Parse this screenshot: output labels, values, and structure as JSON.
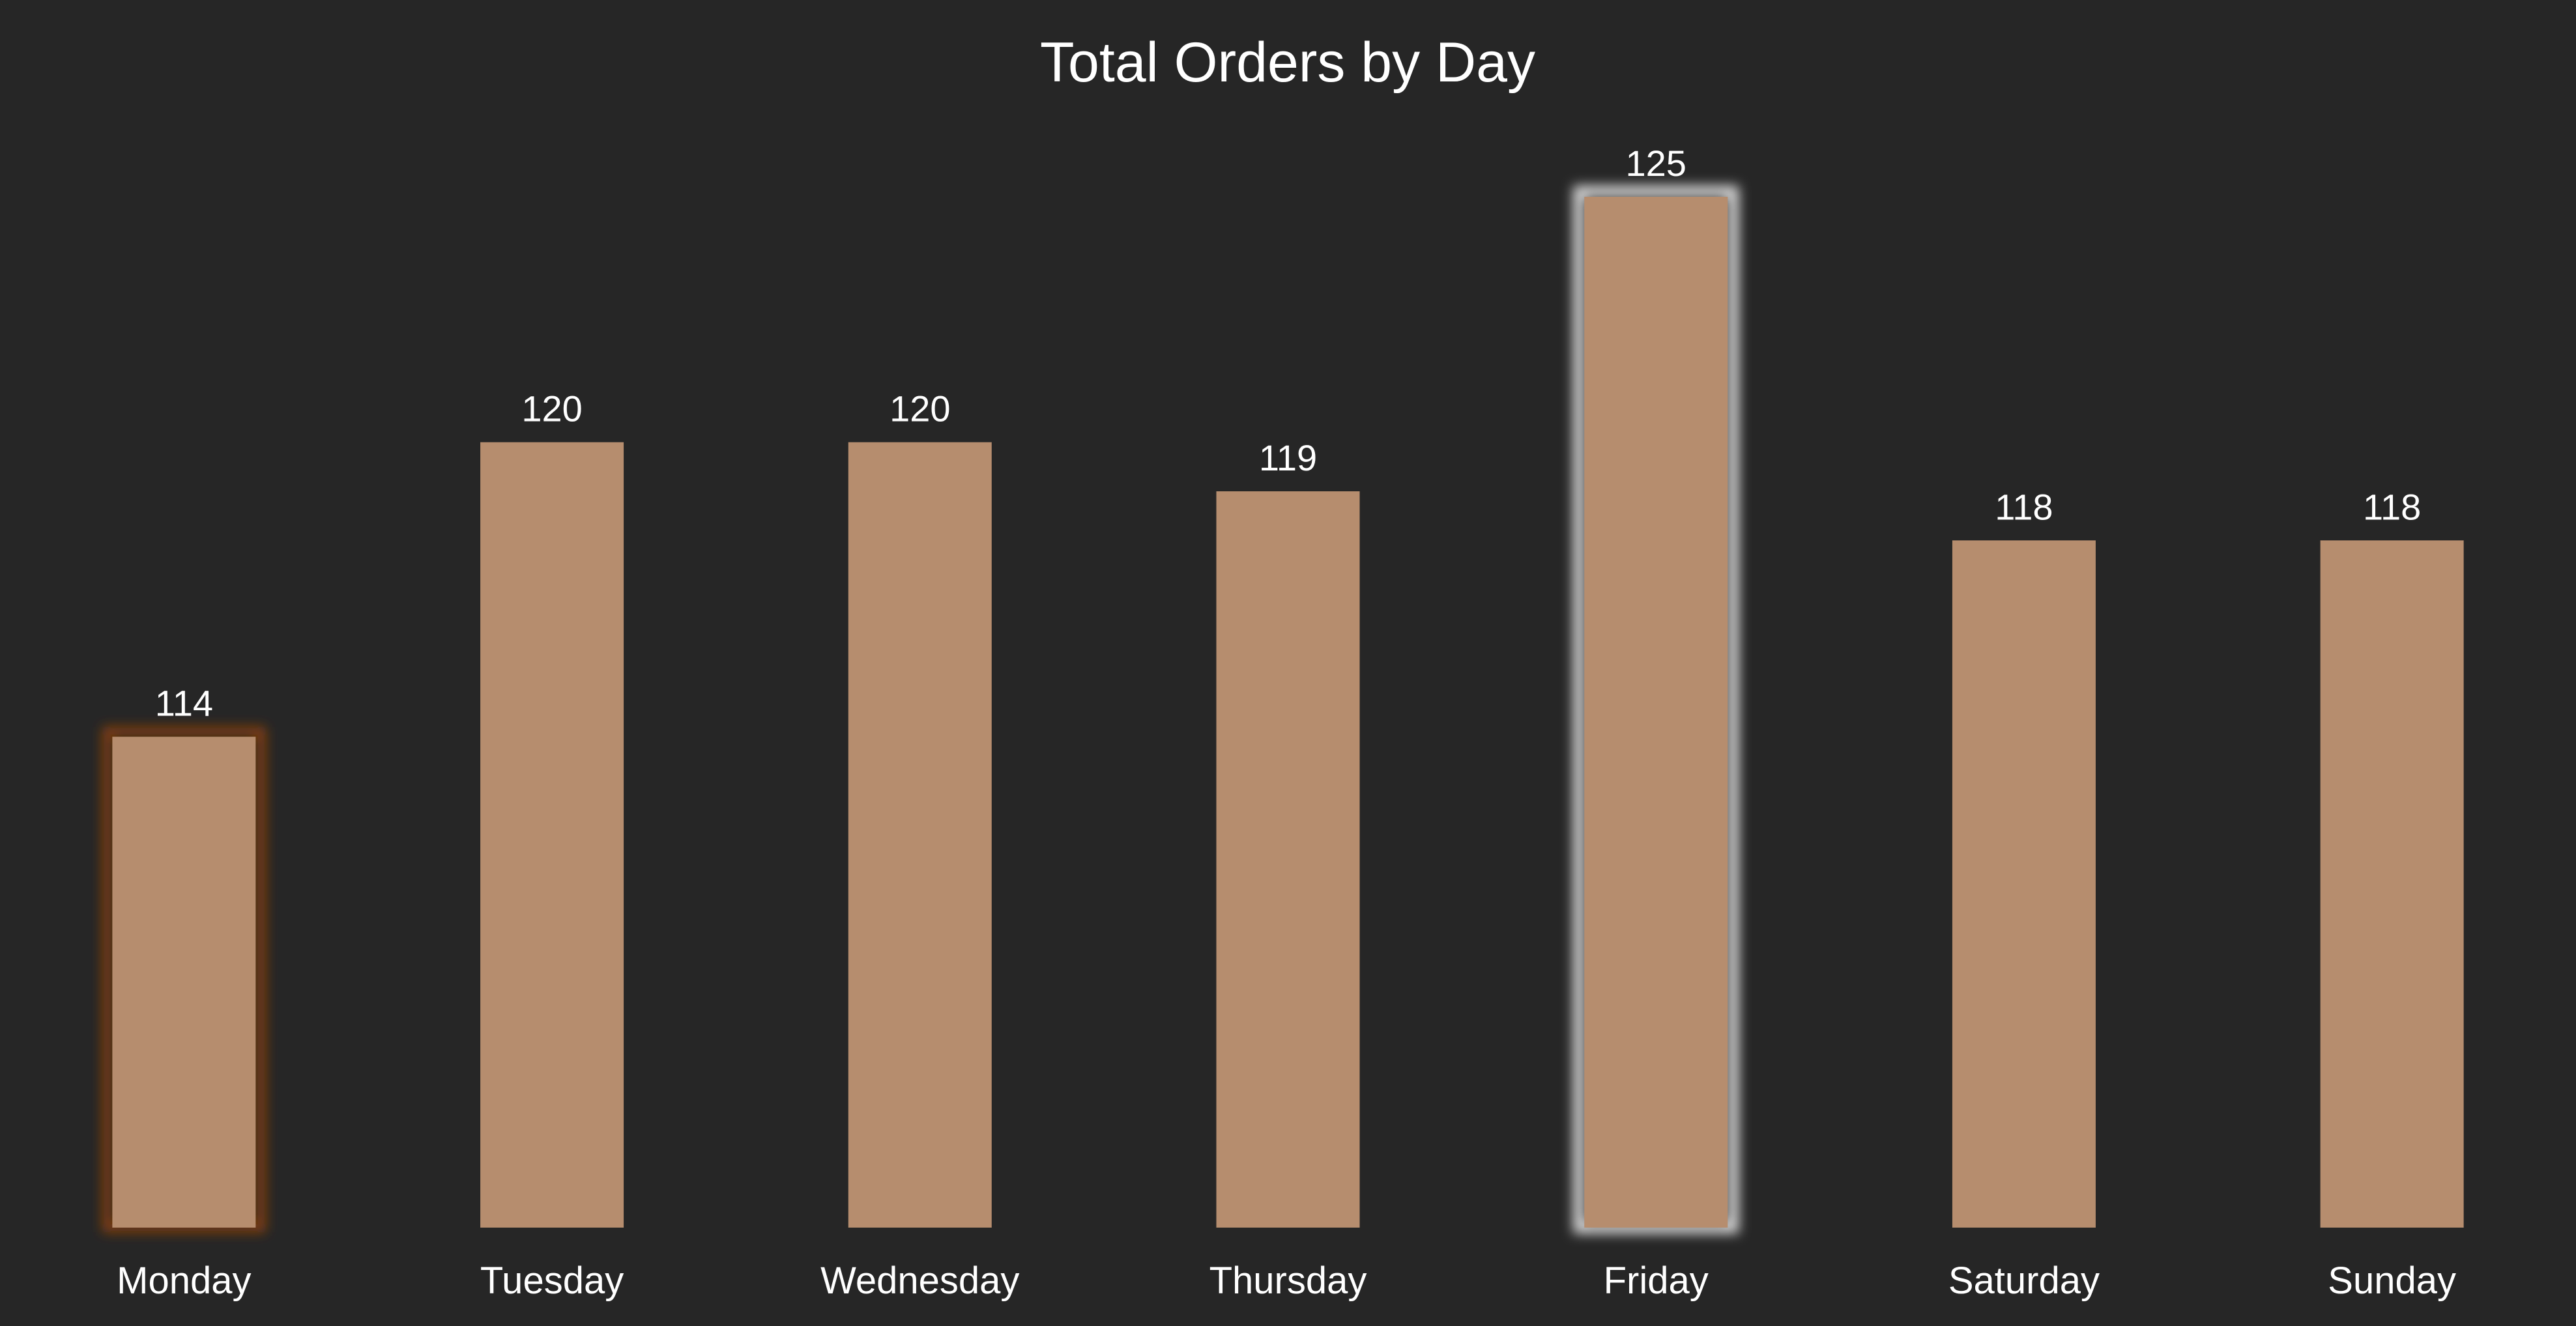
{
  "chart_data": {
    "type": "bar",
    "title": "Total Orders by Day",
    "xlabel": "",
    "ylabel": "",
    "categories": [
      "Monday",
      "Tuesday",
      "Wednesday",
      "Thursday",
      "Friday",
      "Saturday",
      "Sunday"
    ],
    "values": [
      114,
      120,
      120,
      119,
      125,
      118,
      118
    ],
    "ylim": [
      104,
      125
    ],
    "grid": false,
    "legend": "none",
    "data_labels": true,
    "highlight_min": "Monday",
    "highlight_max": "Friday"
  },
  "colors": {
    "background": "#262626",
    "bar": "#b68d6e",
    "text": "#ffffff",
    "min_glow": "#8a3f0f",
    "max_glow": "#d9d9d9"
  }
}
